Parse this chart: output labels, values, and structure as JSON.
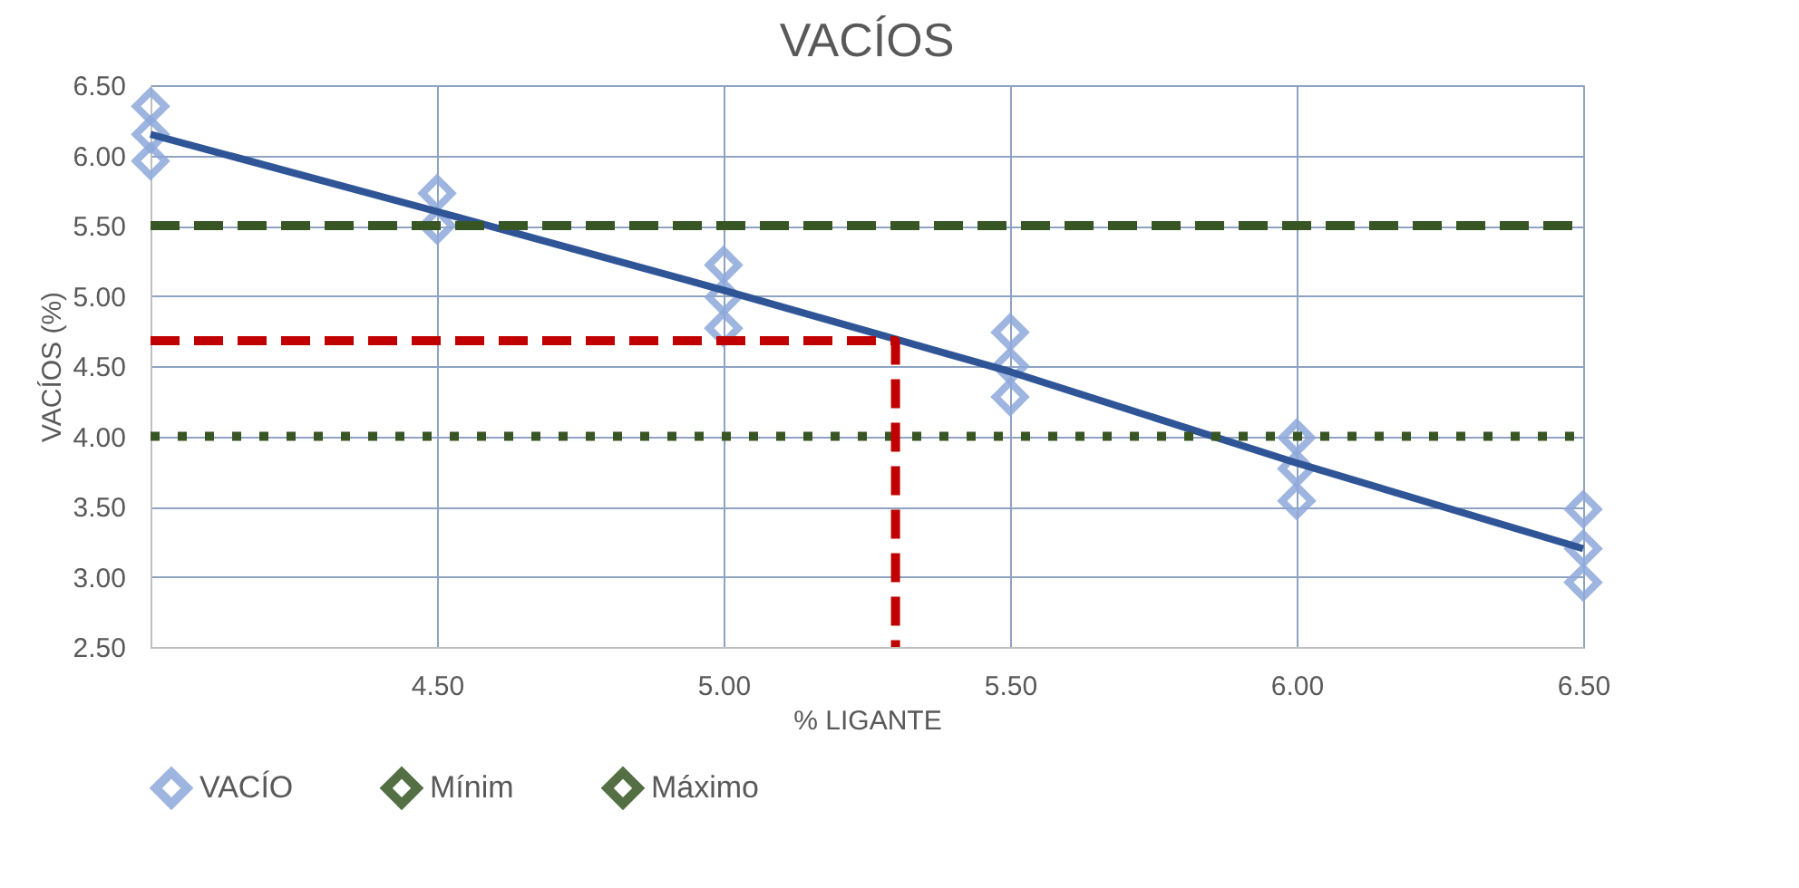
{
  "chart_data": {
    "type": "scatter",
    "title": "VACÍOS",
    "xlabel": "% LIGANTE",
    "ylabel": "VACÍOS (%)",
    "xlim": [
      4,
      6.5
    ],
    "xticks": [
      {
        "value": 4,
        "label": null
      },
      {
        "value": 4.5,
        "label": "4.50"
      },
      {
        "value": 5,
        "label": "5.00"
      },
      {
        "value": 5.5,
        "label": "5.50"
      },
      {
        "value": 6,
        "label": "6.00"
      },
      {
        "value": 6.5,
        "label": "6.50"
      }
    ],
    "ylim": [
      2.5,
      6.5
    ],
    "yticks": [
      {
        "value": 2.5,
        "label": "2.50"
      },
      {
        "value": 3,
        "label": "3.00"
      },
      {
        "value": 3.5,
        "label": "3.50"
      },
      {
        "value": 4,
        "label": "4.00"
      },
      {
        "value": 4.5,
        "label": "4.50"
      },
      {
        "value": 5,
        "label": "5.00"
      },
      {
        "value": 5.5,
        "label": "5.50"
      },
      {
        "value": 6,
        "label": "6.00"
      },
      {
        "value": 6.5,
        "label": "6.50"
      }
    ],
    "grid": true,
    "legend": "bottom",
    "series": [
      {
        "name": "VACÍO",
        "type": "scatter",
        "marker": "diamond",
        "color": "#8ea9db",
        "x": [
          4,
          4,
          4,
          4.5,
          4.5,
          5,
          5,
          5,
          5.5,
          5.5,
          5.5,
          6,
          6,
          6,
          6.5,
          6.5,
          6.5
        ],
        "values": [
          6.35,
          6.15,
          5.96,
          5.73,
          5.5,
          5.22,
          4.99,
          4.77,
          4.74,
          4.5,
          4.28,
          3.99,
          3.77,
          3.54,
          3.48,
          3.2,
          2.96
        ]
      },
      {
        "type": "line",
        "color": "#2f5597",
        "line_style": "solid",
        "x": [
          4,
          4.5,
          5,
          5.5,
          6,
          6.5
        ],
        "values": [
          6.15,
          5.6,
          5.04,
          4.46,
          3.81,
          3.2
        ]
      },
      {
        "name": "Mínim",
        "type": "line",
        "color": "#375623",
        "line_style": "dotted",
        "x": [
          4,
          6.5
        ],
        "values": [
          4,
          4
        ]
      },
      {
        "name": "Máximo",
        "type": "line",
        "color": "#375623",
        "line_style": "dashed",
        "x": [
          4,
          6.5
        ],
        "values": [
          5.5,
          5.5
        ]
      },
      {
        "type": "line",
        "color": "#c00000",
        "line_style": "dashed",
        "x": [
          4,
          5.3,
          5.3
        ],
        "values": [
          4.68,
          4.68,
          2.5
        ]
      }
    ]
  }
}
